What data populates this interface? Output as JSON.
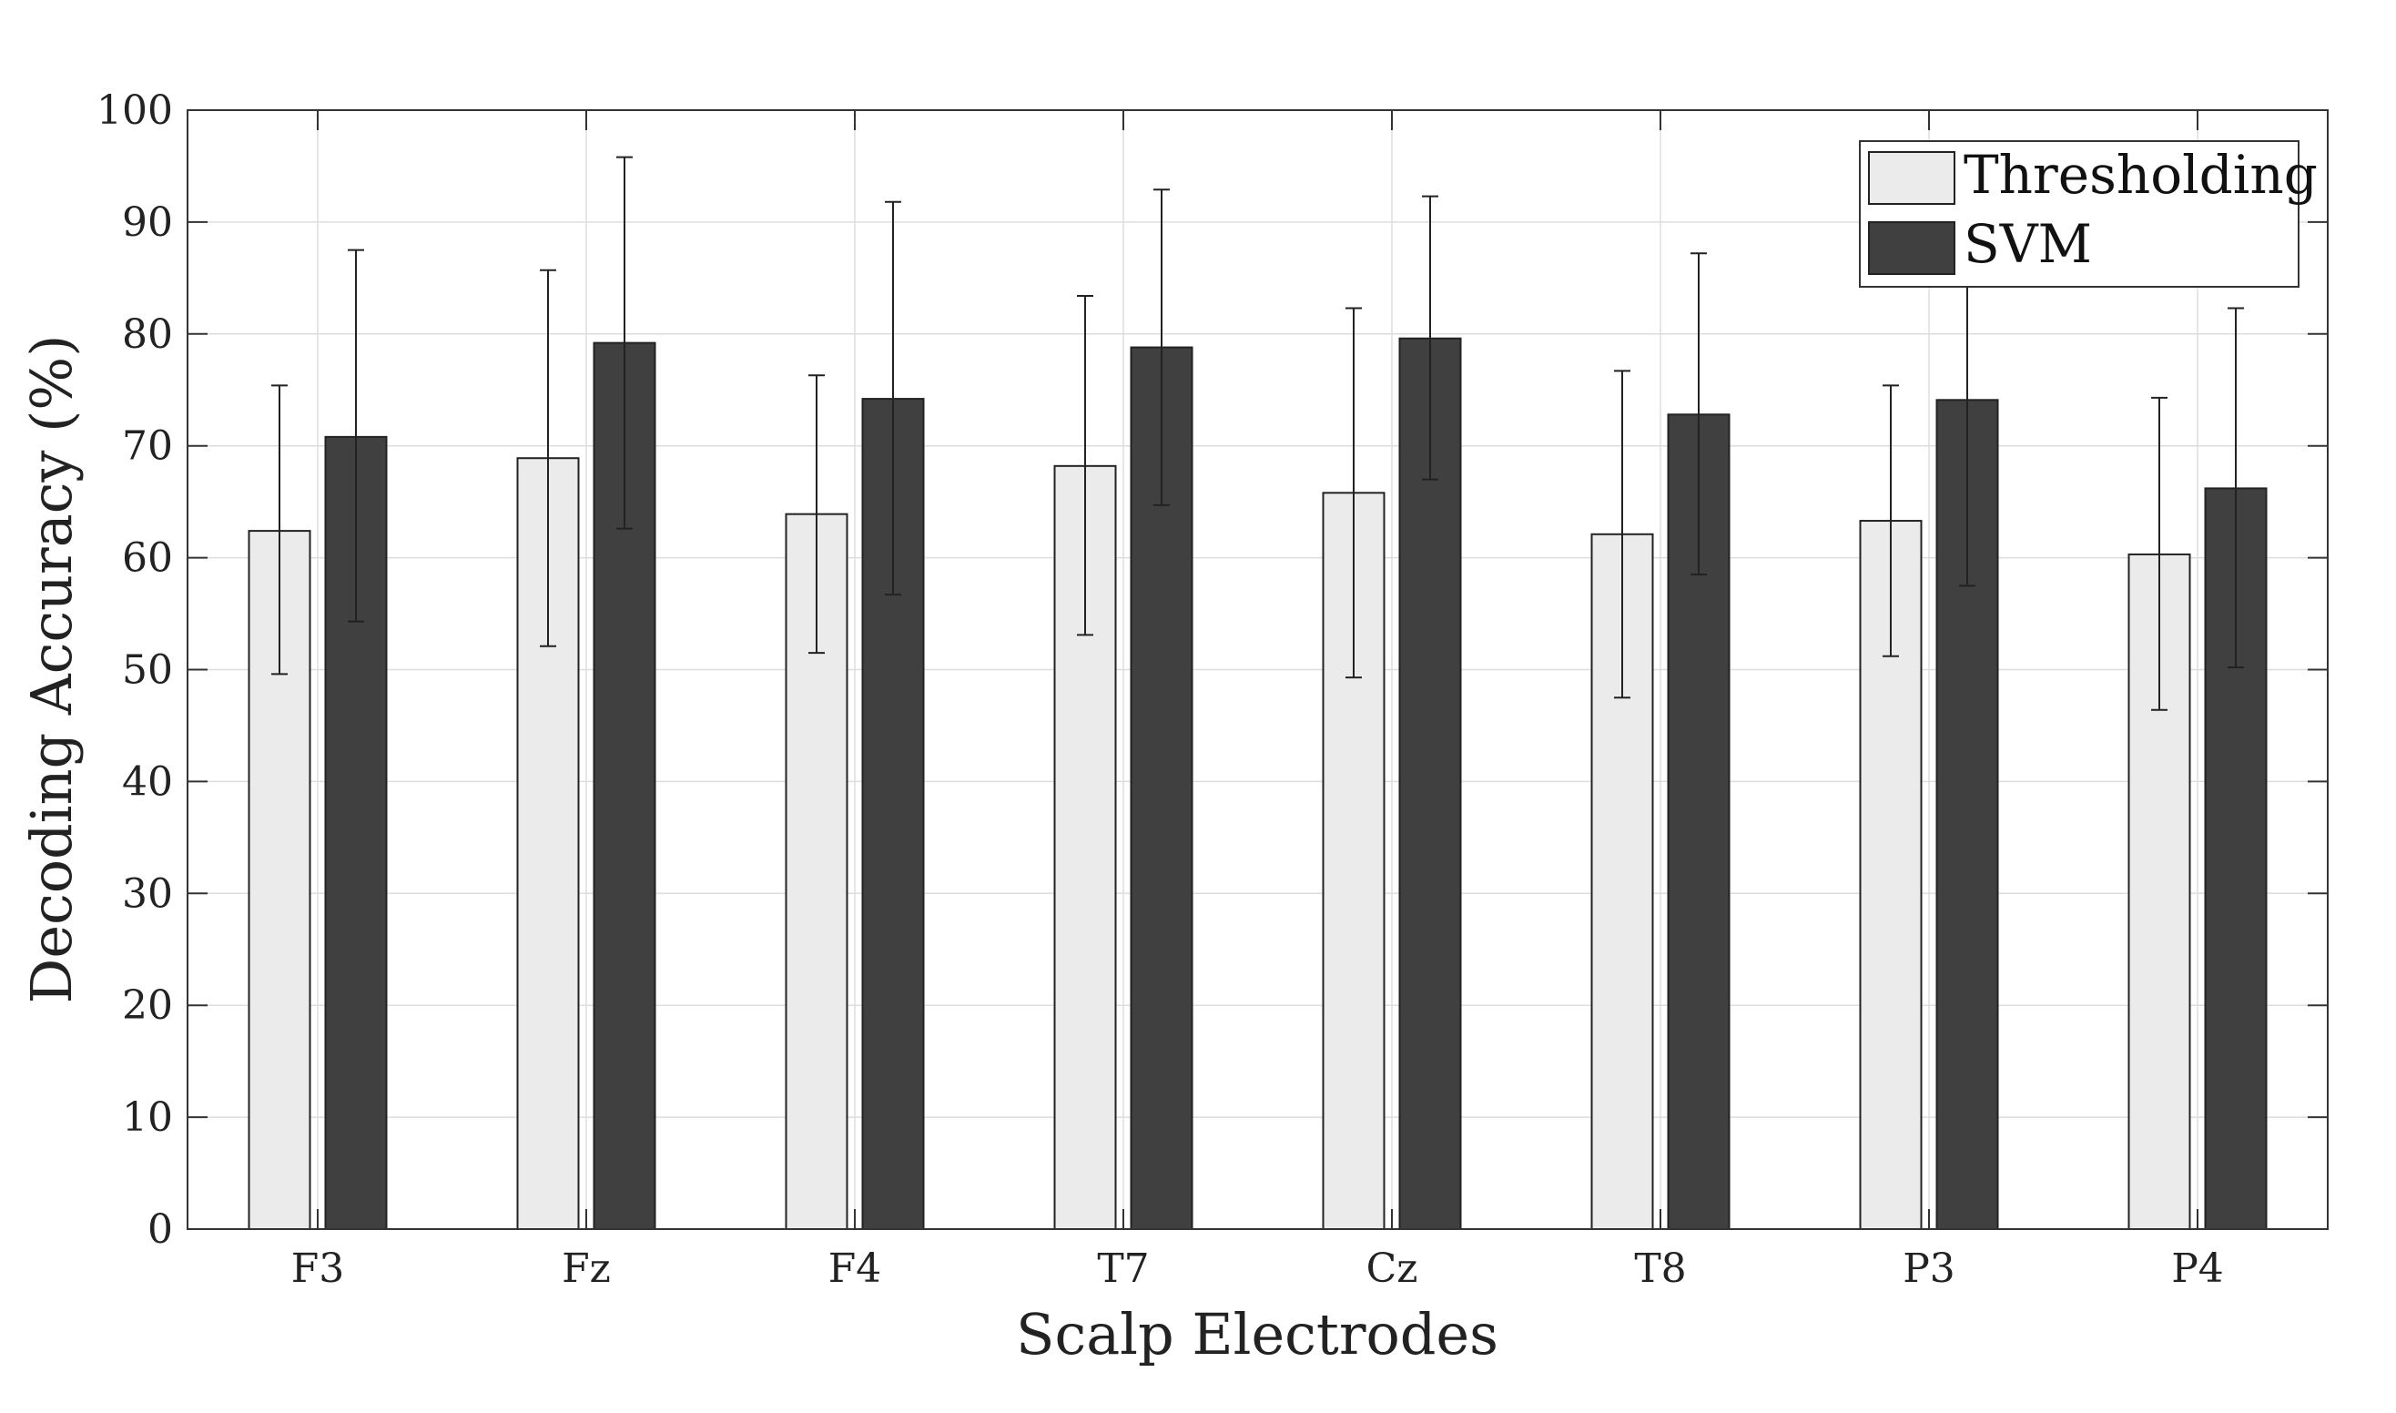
{
  "chart_data": {
    "type": "bar",
    "title": "",
    "xlabel": "Scalp Electrodes",
    "ylabel": "Decoding Accuracy (%)",
    "ylim": [
      0,
      100
    ],
    "yticks": [
      0,
      10,
      20,
      30,
      40,
      50,
      60,
      70,
      80,
      90,
      100
    ],
    "grid": true,
    "legend_position": "top-right",
    "categories": [
      "F3",
      "Fz",
      "F4",
      "T7",
      "Cz",
      "T8",
      "P3",
      "P4"
    ],
    "series": [
      {
        "name": "Thresholding",
        "color": "#ebebeb",
        "values": [
          62.4,
          68.9,
          63.9,
          68.2,
          65.8,
          62.1,
          63.3,
          60.3
        ],
        "error_low": [
          49.6,
          52.1,
          51.5,
          53.1,
          49.3,
          47.5,
          51.2,
          46.4
        ],
        "error_high": [
          75.4,
          85.7,
          76.3,
          83.4,
          82.3,
          76.7,
          75.4,
          74.3
        ]
      },
      {
        "name": "SVM",
        "color": "#404040",
        "values": [
          70.8,
          79.2,
          74.2,
          78.8,
          79.6,
          72.8,
          74.1,
          66.2
        ],
        "error_low": [
          54.3,
          62.6,
          56.7,
          64.7,
          67.0,
          58.5,
          57.5,
          50.2
        ],
        "error_high": [
          87.5,
          95.8,
          91.8,
          92.9,
          92.3,
          87.2,
          91.0,
          82.3
        ]
      }
    ]
  }
}
